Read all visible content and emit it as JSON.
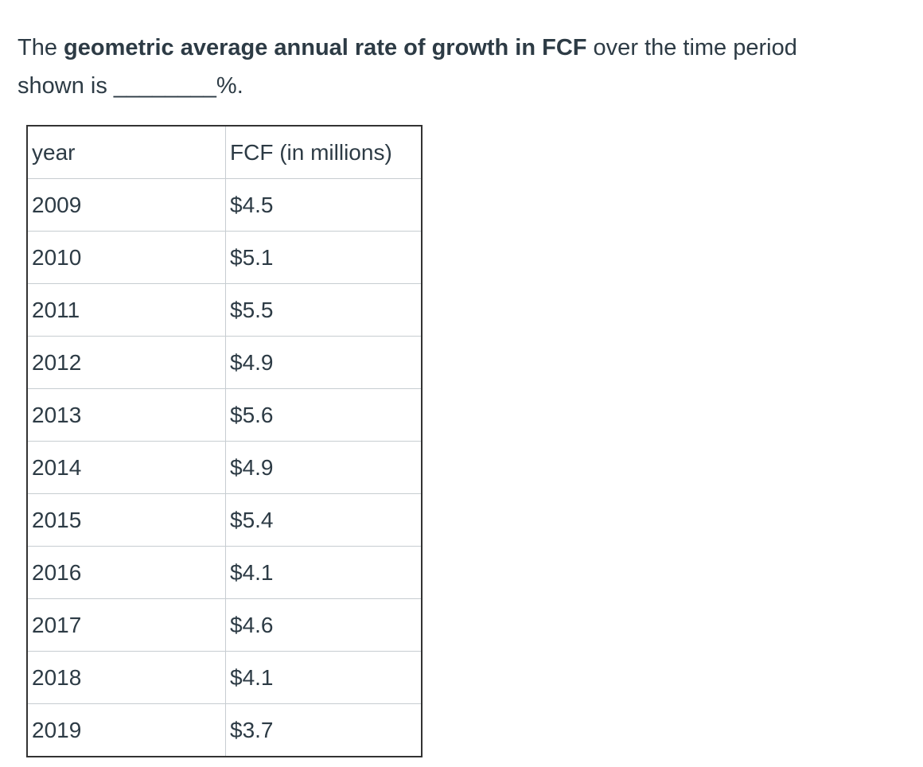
{
  "question": {
    "segments": [
      {
        "text": "The ",
        "bold": false
      },
      {
        "text": "geometric average annual rate of growth in FCF",
        "bold": true
      },
      {
        "text": " over the time period shown is ________%.",
        "bold": false
      }
    ]
  },
  "table": {
    "header": [
      "year",
      "FCF (in millions)"
    ],
    "rows": [
      [
        "2009",
        "$4.5"
      ],
      [
        "2010",
        "$5.1"
      ],
      [
        "2011",
        "$5.5"
      ],
      [
        "2012",
        "$4.9"
      ],
      [
        "2013",
        "$5.6"
      ],
      [
        "2014",
        "$4.9"
      ],
      [
        "2015",
        "$5.4"
      ],
      [
        "2016",
        "$4.1"
      ],
      [
        "2017",
        "$4.6"
      ],
      [
        "2018",
        "$4.1"
      ],
      [
        "2019",
        "$3.7"
      ]
    ]
  }
}
